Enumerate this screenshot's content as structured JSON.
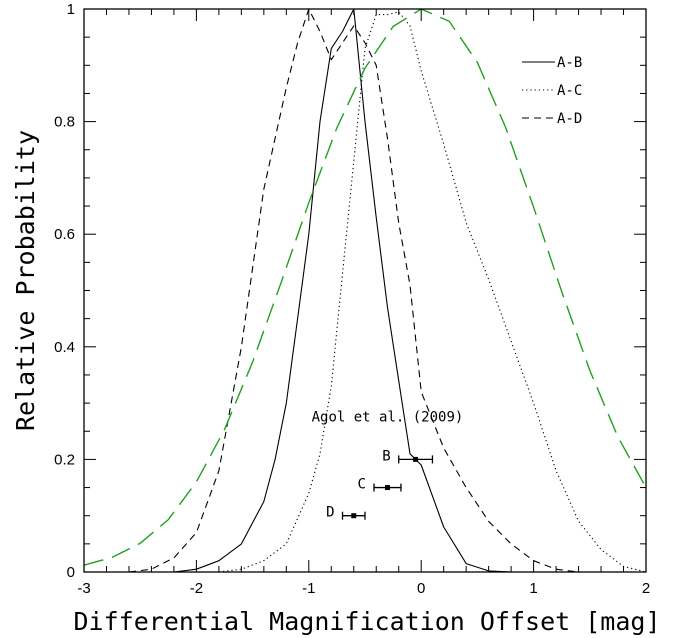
{
  "chart_data": {
    "type": "line",
    "title": "",
    "xlabel": "Differential Magnification Offset [mag]",
    "ylabel": "Relative Probability",
    "xlim": [
      -3,
      2
    ],
    "ylim": [
      0,
      1
    ],
    "xticks": [
      -3,
      -2,
      -1,
      0,
      1,
      2
    ],
    "yticks": [
      0,
      0.2,
      0.4,
      0.6,
      0.8,
      1
    ],
    "grid": false,
    "legend_position": "top-right",
    "series": [
      {
        "name": "A-B",
        "style": "solid",
        "color": "#000000",
        "x": [
          -2.2,
          -2.0,
          -1.8,
          -1.6,
          -1.4,
          -1.3,
          -1.2,
          -1.1,
          -1.0,
          -0.9,
          -0.8,
          -0.7,
          -0.6,
          -0.5,
          -0.4,
          -0.3,
          -0.2,
          -0.1,
          0.0,
          0.2,
          0.4,
          0.6,
          0.8,
          1.0
        ],
        "y": [
          0.0,
          0.005,
          0.02,
          0.05,
          0.125,
          0.2,
          0.3,
          0.45,
          0.6,
          0.8,
          0.93,
          0.96,
          1.0,
          0.8,
          0.63,
          0.47,
          0.34,
          0.21,
          0.19,
          0.08,
          0.015,
          0.002,
          0.0,
          0.0
        ]
      },
      {
        "name": "A-C",
        "style": "dotted",
        "color": "#000000",
        "x": [
          -1.8,
          -1.6,
          -1.4,
          -1.2,
          -1.0,
          -0.9,
          -0.8,
          -0.7,
          -0.6,
          -0.5,
          -0.4,
          -0.3,
          -0.2,
          -0.1,
          0.0,
          0.2,
          0.4,
          0.6,
          0.8,
          1.0,
          1.2,
          1.4,
          1.6,
          1.8,
          2.0
        ],
        "y": [
          0.0,
          0.005,
          0.02,
          0.05,
          0.14,
          0.21,
          0.33,
          0.53,
          0.73,
          0.93,
          0.99,
          0.99,
          0.995,
          0.97,
          0.89,
          0.76,
          0.62,
          0.52,
          0.41,
          0.3,
          0.18,
          0.09,
          0.04,
          0.01,
          0.0
        ]
      },
      {
        "name": "A-D",
        "style": "dashed",
        "color": "#000000",
        "x": [
          -2.6,
          -2.4,
          -2.2,
          -2.0,
          -1.8,
          -1.6,
          -1.4,
          -1.2,
          -1.1,
          -1.0,
          -0.9,
          -0.8,
          -0.7,
          -0.6,
          -0.5,
          -0.4,
          -0.3,
          -0.2,
          -0.1,
          0.0,
          0.2,
          0.4,
          0.6,
          0.8,
          1.0,
          1.2,
          1.4
        ],
        "y": [
          0.0,
          0.005,
          0.025,
          0.07,
          0.18,
          0.4,
          0.68,
          0.86,
          0.94,
          1.0,
          0.96,
          0.91,
          0.94,
          0.97,
          0.94,
          0.9,
          0.77,
          0.62,
          0.51,
          0.32,
          0.22,
          0.15,
          0.09,
          0.05,
          0.02,
          0.005,
          0.0
        ]
      },
      {
        "name": "",
        "style": "long-dashed",
        "color": "#1fa31f",
        "x": [
          -3.0,
          -2.75,
          -2.5,
          -2.25,
          -2.0,
          -1.75,
          -1.5,
          -1.25,
          -1.0,
          -0.75,
          -0.5,
          -0.25,
          0.0,
          0.25,
          0.5,
          0.75,
          1.0,
          1.25,
          1.5,
          1.75,
          2.0
        ],
        "y": [
          0.012,
          0.026,
          0.051,
          0.093,
          0.16,
          0.253,
          0.373,
          0.512,
          0.656,
          0.789,
          0.895,
          0.969,
          1.0,
          0.978,
          0.905,
          0.79,
          0.648,
          0.498,
          0.358,
          0.24,
          0.15
        ]
      }
    ],
    "annotations": {
      "title": "Agol et al. (2009)",
      "points": [
        {
          "label": "B",
          "x": -0.05,
          "xerr": 0.15,
          "y": 0.2
        },
        {
          "label": "C",
          "x": -0.3,
          "xerr": 0.12,
          "y": 0.15
        },
        {
          "label": "D",
          "x": -0.6,
          "xerr": 0.1,
          "y": 0.1
        }
      ]
    }
  }
}
